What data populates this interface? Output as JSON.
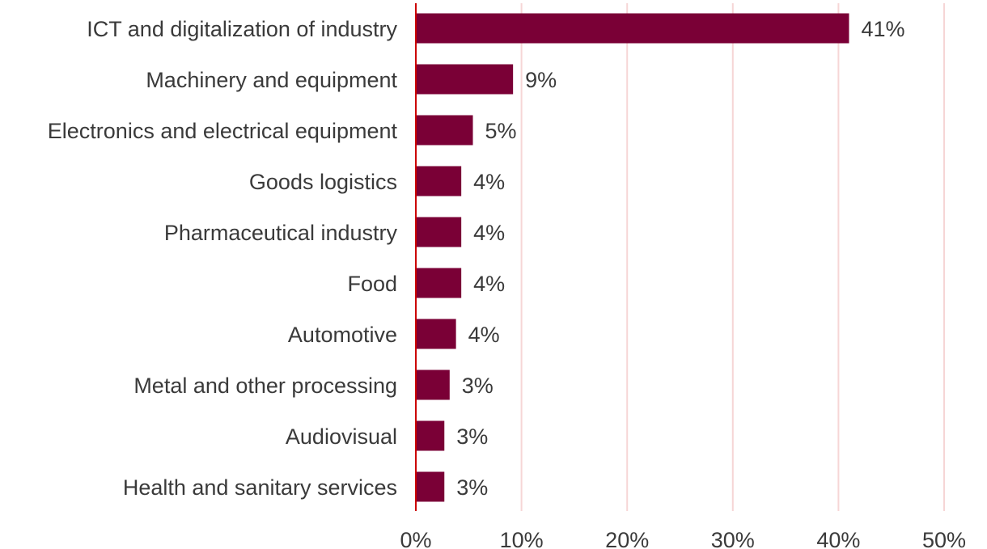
{
  "chart_data": {
    "type": "bar",
    "orientation": "horizontal",
    "categories": [
      "ICT and digitalization of industry",
      "Machinery and equipment",
      "Electronics and electrical equipment",
      "Goods logistics",
      "Pharmaceutical industry",
      "Food",
      "Automotive",
      "Metal and other processing",
      "Audiovisual",
      "Health and sanitary services"
    ],
    "values": [
      41,
      9.2,
      5.4,
      4.3,
      4.3,
      4.3,
      3.8,
      3.2,
      2.7,
      2.7
    ],
    "value_labels": [
      "41%",
      "9%",
      "5%",
      "4%",
      "4%",
      "4%",
      "4%",
      "3%",
      "3%",
      "3%"
    ],
    "xlim": [
      0,
      50
    ],
    "x_ticks": [
      0,
      10,
      20,
      30,
      40,
      50
    ],
    "x_tick_labels": [
      "0%",
      "10%",
      "20%",
      "30%",
      "40%",
      "50%"
    ],
    "grid": "vertical",
    "legend": "none",
    "bar_color": "#7a0036",
    "grid_color": "#f6d6d6",
    "axis_color": "#cc0000"
  }
}
